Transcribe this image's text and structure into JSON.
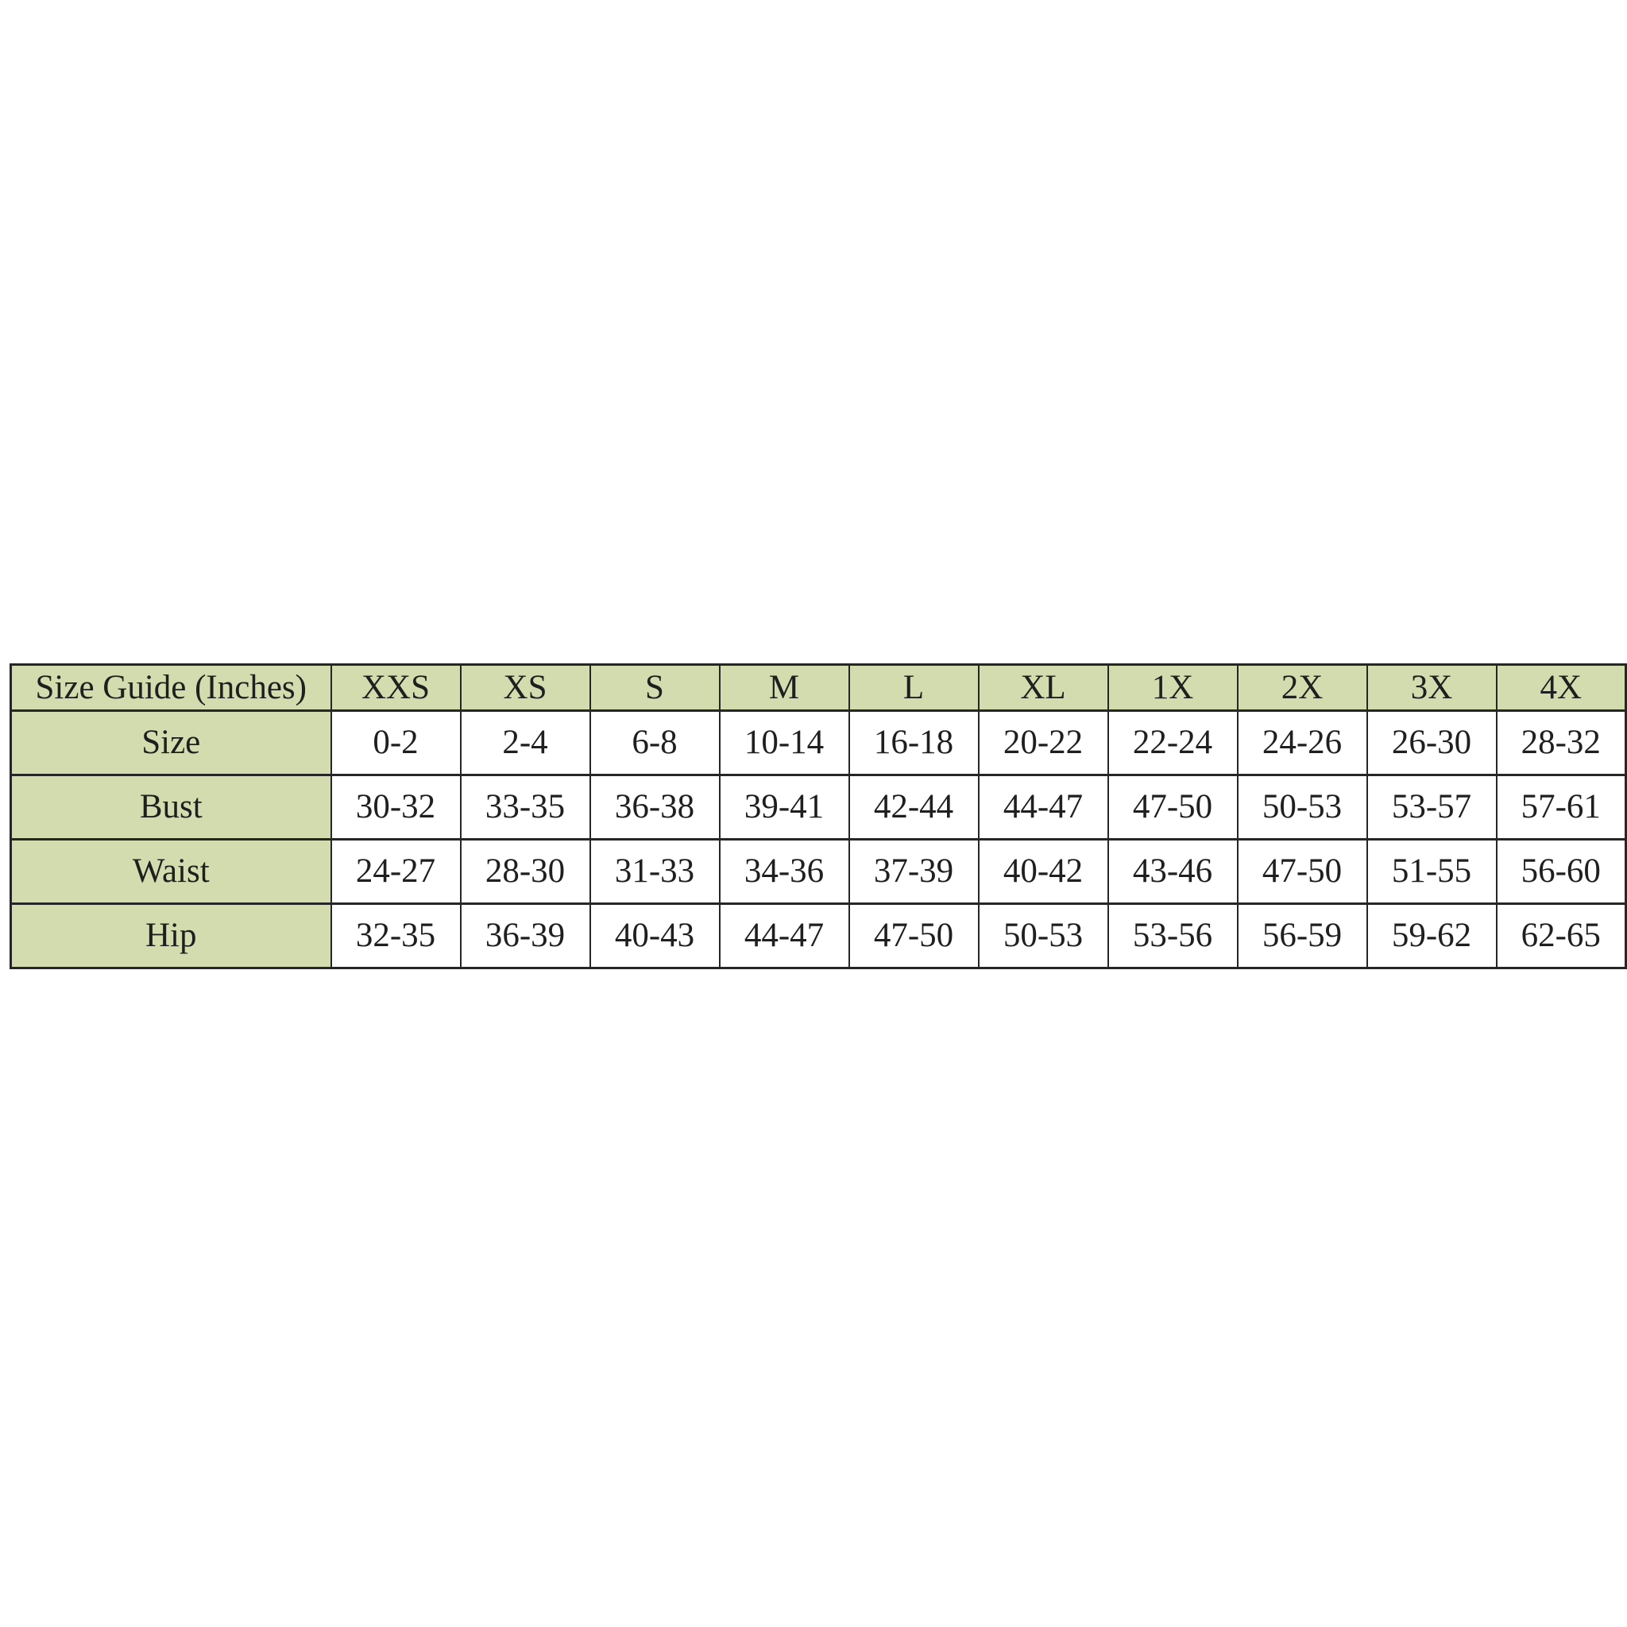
{
  "chart_data": {
    "type": "table",
    "title": "Size Guide (Inches)",
    "corner_label": "Size Guide (Inches)",
    "columns": [
      "XXS",
      "XS",
      "S",
      "M",
      "L",
      "XL",
      "1X",
      "2X",
      "3X",
      "4X"
    ],
    "rows": [
      {
        "label": "Size",
        "values": [
          "0-2",
          "2-4",
          "6-8",
          "10-14",
          "16-18",
          "20-22",
          "22-24",
          "24-26",
          "26-30",
          "28-32"
        ]
      },
      {
        "label": "Bust",
        "values": [
          "30-32",
          "33-35",
          "36-38",
          "39-41",
          "42-44",
          "44-47",
          "47-50",
          "50-53",
          "53-57",
          "57-61"
        ]
      },
      {
        "label": "Waist",
        "values": [
          "24-27",
          "28-30",
          "31-33",
          "34-36",
          "37-39",
          "40-42",
          "43-46",
          "47-50",
          "51-55",
          "56-60"
        ]
      },
      {
        "label": "Hip",
        "values": [
          "32-35",
          "36-39",
          "40-43",
          "44-47",
          "47-50",
          "50-53",
          "53-56",
          "56-59",
          "59-62",
          "62-65"
        ]
      }
    ],
    "layout": {
      "grid": "on",
      "header_position": "top-row-and-first-column"
    },
    "colors": {
      "header_bg": "#d2dcae",
      "cell_bg": "#ffffff",
      "border": "#262626",
      "text": "#1f1f1f",
      "page_bg": "#ffffff"
    }
  }
}
